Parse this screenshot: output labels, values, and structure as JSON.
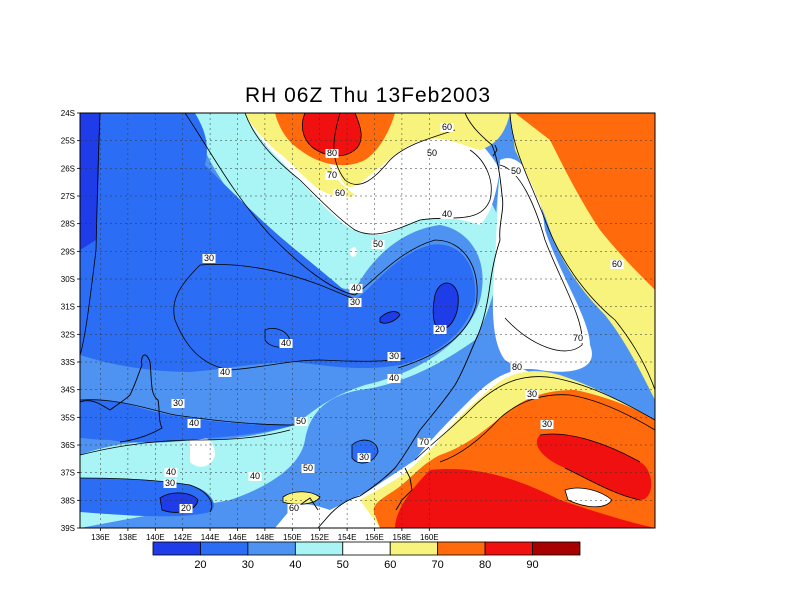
{
  "title": "RH 06Z Thu 13Feb2003",
  "map": {
    "lat_ticks": [
      "24S",
      "25S",
      "26S",
      "27S",
      "28S",
      "29S",
      "30S",
      "31S",
      "32S",
      "33S",
      "34S",
      "35S",
      "36S",
      "37S",
      "38S",
      "39S"
    ],
    "lon_ticks": [
      "136E",
      "138E",
      "140E",
      "142E",
      "144E",
      "146E",
      "148E",
      "150E",
      "152E",
      "154E",
      "156E",
      "158E",
      "160E"
    ],
    "contour_labels": [
      "60",
      "50",
      "80",
      "70",
      "60",
      "50",
      "50",
      "40",
      "30",
      "40",
      "30",
      "20",
      "40",
      "30",
      "40",
      "60",
      "70",
      "80",
      "30",
      "30",
      "40",
      "30",
      "40",
      "50",
      "40",
      "30",
      "40",
      "50",
      "70",
      "20",
      "60",
      "30"
    ]
  },
  "colorbar": {
    "colors": [
      "#1e3ce8",
      "#2b6ef5",
      "#4f93f2",
      "#a9f4f4",
      "#ffffff",
      "#f8f37c",
      "#ff6a0c",
      "#f01010",
      "#a80000"
    ],
    "labels": [
      "20",
      "30",
      "40",
      "50",
      "60",
      "70",
      "80",
      "90"
    ]
  }
}
